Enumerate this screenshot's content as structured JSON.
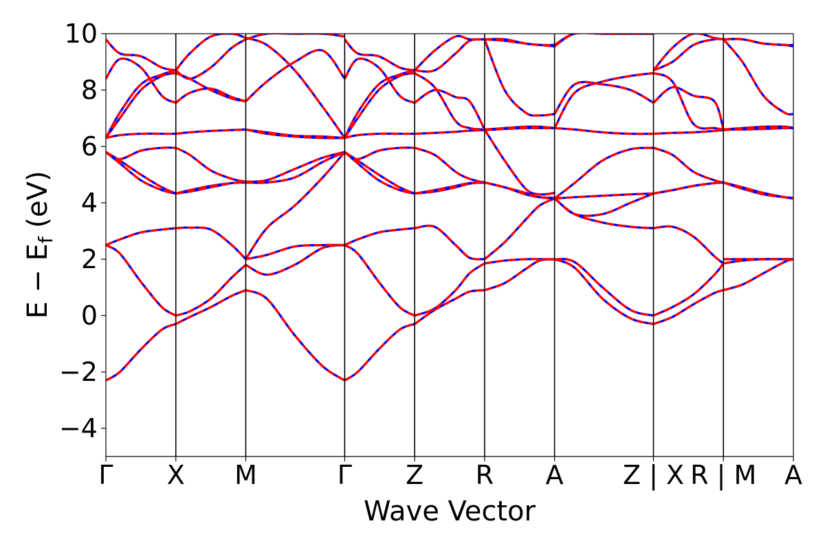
{
  "chart_data": {
    "type": "line",
    "title": "",
    "xlabel": "Wave Vector",
    "ylabel": {
      "main": "E − E",
      "sub": "f",
      "unit": " (eV)"
    },
    "ylim": [
      -5,
      10
    ],
    "yticks": [
      -4,
      -2,
      0,
      2,
      4,
      6,
      8,
      10
    ],
    "grid": false,
    "legend": "none",
    "high_symmetry_points": [
      {
        "label": "Γ",
        "x": 0.0
      },
      {
        "label": "X",
        "x": 0.5
      },
      {
        "label": "M",
        "x": 1.0
      },
      {
        "label": "Γ",
        "x": 1.7071
      },
      {
        "label": "Z",
        "x": 2.2071
      },
      {
        "label": "R",
        "x": 2.7071
      },
      {
        "label": "A",
        "x": 3.2071
      },
      {
        "label": "Z | X",
        "x": 3.9142
      },
      {
        "label": "R | M",
        "x": 4.4142
      },
      {
        "label": "A",
        "x": 4.9142
      }
    ],
    "styles": [
      {
        "color": "#0000ff",
        "dash": "none"
      },
      {
        "color": "#ff0000",
        "dash": "dashed"
      }
    ],
    "segments": [
      {
        "x": [
          0.0,
          0.1,
          0.25,
          0.4,
          0.5
        ],
        "bands": [
          [
            -2.3,
            -2.0,
            -1.2,
            -0.5,
            -0.3
          ],
          [
            2.5,
            2.2,
            1.2,
            0.3,
            0.0
          ],
          [
            2.5,
            2.7,
            2.95,
            3.05,
            3.1
          ],
          [
            5.8,
            5.4,
            4.8,
            4.45,
            4.33
          ],
          [
            5.8,
            5.5,
            5.0,
            4.55,
            4.33
          ],
          [
            5.8,
            5.55,
            5.85,
            5.95,
            5.95
          ],
          [
            6.3,
            6.4,
            6.45,
            6.45,
            6.45
          ],
          [
            6.3,
            7.0,
            8.0,
            8.5,
            8.6
          ],
          [
            6.3,
            7.2,
            8.2,
            8.55,
            8.7
          ],
          [
            8.4,
            9.1,
            8.8,
            7.8,
            7.55
          ],
          [
            9.8,
            9.3,
            9.2,
            8.8,
            8.7
          ]
        ]
      },
      {
        "x": [
          0.5,
          0.6,
          0.75,
          0.9,
          1.0
        ],
        "bands": [
          [
            -0.3,
            -0.05,
            0.3,
            0.7,
            0.9
          ],
          [
            0.0,
            0.15,
            0.6,
            1.35,
            1.8
          ],
          [
            3.1,
            3.12,
            3.05,
            2.5,
            2.0
          ],
          [
            4.33,
            4.45,
            4.6,
            4.7,
            4.72
          ],
          [
            4.33,
            4.4,
            4.55,
            4.7,
            4.75
          ],
          [
            5.95,
            5.7,
            5.15,
            4.85,
            4.75
          ],
          [
            6.45,
            6.5,
            6.55,
            6.58,
            6.6
          ],
          [
            7.55,
            7.9,
            8.05,
            7.75,
            7.6
          ],
          [
            8.6,
            8.4,
            8.0,
            7.7,
            7.6
          ],
          [
            8.7,
            8.4,
            8.8,
            9.5,
            9.8
          ],
          [
            8.7,
            9.3,
            9.9,
            10.0,
            9.85
          ]
        ]
      },
      {
        "x": [
          1.0,
          1.15,
          1.35,
          1.55,
          1.7071
        ],
        "bands": [
          [
            0.9,
            0.6,
            -0.7,
            -1.8,
            -2.3
          ],
          [
            1.8,
            1.45,
            1.8,
            2.4,
            2.5
          ],
          [
            2.0,
            2.15,
            2.45,
            2.5,
            2.5
          ],
          [
            2.0,
            3.1,
            3.9,
            4.9,
            5.8
          ],
          [
            4.72,
            4.72,
            4.9,
            5.45,
            5.8
          ],
          [
            4.75,
            4.8,
            5.2,
            5.6,
            5.8
          ],
          [
            6.6,
            6.5,
            6.38,
            6.35,
            6.3
          ],
          [
            6.6,
            6.45,
            6.35,
            6.3,
            6.3
          ],
          [
            7.6,
            8.3,
            9.0,
            9.4,
            8.4
          ],
          [
            9.85,
            9.6,
            8.7,
            7.4,
            6.3
          ],
          [
            9.8,
            10.0,
            10.0,
            10.0,
            9.9
          ]
        ]
      },
      {
        "x": [
          1.7071,
          1.8,
          1.95,
          2.1,
          2.2071
        ],
        "bands": [
          [
            -2.3,
            -2.0,
            -1.2,
            -0.5,
            -0.3
          ],
          [
            2.5,
            2.2,
            1.2,
            0.3,
            0.0
          ],
          [
            2.5,
            2.7,
            2.95,
            3.05,
            3.1
          ],
          [
            5.8,
            5.4,
            4.8,
            4.45,
            4.33
          ],
          [
            5.8,
            5.5,
            5.0,
            4.55,
            4.33
          ],
          [
            5.8,
            5.55,
            5.85,
            5.95,
            5.95
          ],
          [
            6.3,
            6.4,
            6.45,
            6.45,
            6.45
          ],
          [
            6.3,
            7.0,
            8.0,
            8.5,
            8.6
          ],
          [
            6.3,
            7.2,
            8.2,
            8.55,
            8.7
          ],
          [
            8.4,
            9.1,
            8.8,
            7.8,
            7.55
          ],
          [
            9.8,
            9.3,
            9.2,
            8.8,
            8.7
          ]
        ]
      },
      {
        "x": [
          2.2071,
          2.35,
          2.5,
          2.6,
          2.7071
        ],
        "bands": [
          [
            -0.3,
            0.2,
            0.6,
            0.85,
            0.9
          ],
          [
            0.0,
            0.25,
            0.9,
            1.5,
            1.85
          ],
          [
            3.1,
            3.15,
            2.5,
            2.05,
            2.0
          ],
          [
            4.33,
            4.4,
            4.55,
            4.68,
            4.72
          ],
          [
            4.33,
            4.45,
            4.6,
            4.7,
            4.72
          ],
          [
            5.95,
            5.7,
            5.1,
            4.85,
            4.72
          ],
          [
            6.45,
            6.48,
            6.52,
            6.56,
            6.58
          ],
          [
            7.55,
            8.0,
            7.75,
            7.6,
            6.6
          ],
          [
            8.6,
            8.1,
            6.9,
            6.65,
            6.6
          ],
          [
            8.7,
            8.7,
            9.3,
            9.75,
            9.8
          ],
          [
            8.7,
            9.4,
            9.9,
            9.8,
            9.8
          ]
        ]
      },
      {
        "x": [
          2.7071,
          2.85,
          3.0,
          3.1,
          3.2071
        ],
        "bands": [
          [
            0.9,
            1.15,
            1.65,
            1.95,
            2.0
          ],
          [
            1.85,
            1.95,
            2.0,
            2.0,
            2.0
          ],
          [
            2.0,
            2.6,
            3.4,
            3.9,
            4.15
          ],
          [
            4.72,
            4.55,
            4.35,
            4.2,
            4.15
          ],
          [
            4.72,
            4.55,
            4.3,
            4.2,
            4.18
          ],
          [
            6.58,
            6.62,
            6.65,
            6.65,
            6.65
          ],
          [
            6.6,
            6.65,
            6.7,
            6.7,
            6.65
          ],
          [
            6.6,
            5.5,
            4.5,
            4.3,
            4.35
          ],
          [
            9.8,
            8.0,
            7.2,
            7.1,
            7.15
          ],
          [
            9.8,
            9.75,
            9.65,
            9.6,
            9.55
          ],
          [
            9.8,
            9.8,
            9.65,
            9.6,
            9.6
          ]
        ]
      },
      {
        "x": [
          3.2071,
          3.35,
          3.55,
          3.75,
          3.9142
        ],
        "bands": [
          [
            2.0,
            1.7,
            0.6,
            -0.1,
            -0.3
          ],
          [
            2.0,
            1.9,
            1.0,
            0.2,
            0.0
          ],
          [
            4.15,
            3.6,
            3.3,
            3.15,
            3.1
          ],
          [
            4.15,
            4.2,
            4.25,
            4.3,
            4.33
          ],
          [
            4.18,
            3.6,
            3.6,
            4.0,
            4.33
          ],
          [
            4.15,
            4.7,
            5.5,
            5.9,
            5.95
          ],
          [
            6.65,
            6.6,
            6.5,
            6.45,
            6.45
          ],
          [
            6.65,
            7.9,
            8.3,
            8.5,
            8.6
          ],
          [
            7.15,
            8.2,
            8.2,
            8.0,
            7.55
          ],
          [
            9.55,
            10.0,
            10.0,
            10.0,
            10.0
          ],
          [
            9.6,
            10.0,
            10.0,
            10.0,
            10.0
          ]
        ]
      },
      {
        "x": [
          3.9142,
          4.05,
          4.2,
          4.35,
          4.4142
        ],
        "bands": [
          [
            -0.3,
            -0.05,
            0.4,
            0.8,
            0.9
          ],
          [
            0.0,
            0.3,
            0.75,
            1.45,
            1.85
          ],
          [
            3.1,
            3.15,
            2.8,
            2.1,
            1.85
          ],
          [
            4.33,
            4.45,
            4.6,
            4.7,
            4.72
          ],
          [
            4.33,
            4.45,
            4.6,
            4.7,
            4.72
          ],
          [
            5.95,
            5.7,
            5.1,
            4.8,
            4.72
          ],
          [
            6.45,
            6.48,
            6.5,
            6.55,
            6.58
          ],
          [
            7.55,
            8.1,
            7.8,
            7.6,
            6.6
          ],
          [
            8.6,
            8.3,
            6.8,
            6.65,
            6.6
          ],
          [
            8.7,
            9.0,
            9.6,
            9.8,
            9.8
          ],
          [
            8.7,
            9.5,
            10.0,
            9.85,
            9.8
          ]
        ]
      },
      {
        "x": [
          4.4142,
          4.55,
          4.7,
          4.85,
          4.9142
        ],
        "bands": [
          [
            0.9,
            1.1,
            1.5,
            1.9,
            2.0
          ],
          [
            1.85,
            1.95,
            2.0,
            2.0,
            2.0
          ],
          [
            2.0,
            2.0,
            2.0,
            2.0,
            2.0
          ],
          [
            4.72,
            4.55,
            4.35,
            4.2,
            4.15
          ],
          [
            4.72,
            4.5,
            4.3,
            4.2,
            4.18
          ],
          [
            6.58,
            6.62,
            6.65,
            6.7,
            6.65
          ],
          [
            6.6,
            6.65,
            6.7,
            6.7,
            6.65
          ],
          [
            6.6,
            6.6,
            6.62,
            6.65,
            6.65
          ],
          [
            9.8,
            9.0,
            7.8,
            7.2,
            7.15
          ],
          [
            9.8,
            9.8,
            9.65,
            9.6,
            9.55
          ],
          [
            9.8,
            9.8,
            9.65,
            9.6,
            9.6
          ]
        ]
      }
    ]
  }
}
